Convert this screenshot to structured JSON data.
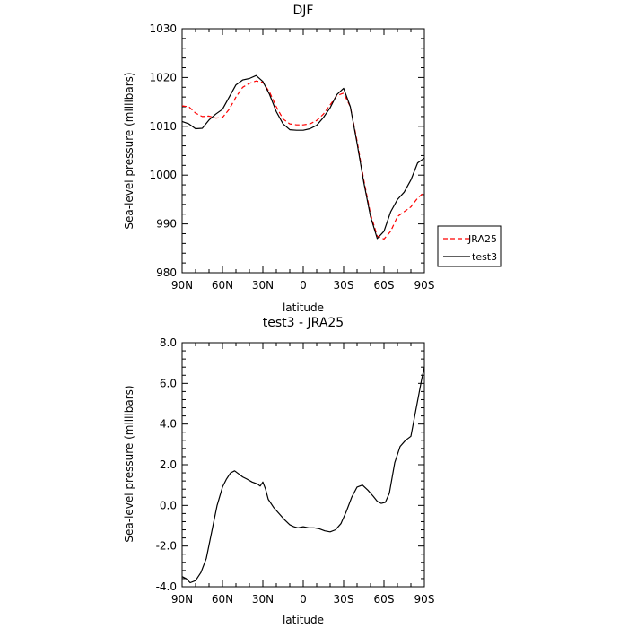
{
  "chart_data": [
    {
      "type": "line",
      "title": "DJF",
      "xlabel": "latitude",
      "ylabel": "Sea-level pressure (millibars)",
      "xlim": [
        90,
        -90
      ],
      "ylim": [
        980,
        1030
      ],
      "x_ticks": [
        90,
        60,
        30,
        0,
        -30,
        -60,
        -90
      ],
      "x_tick_labels": [
        "90N",
        "60N",
        "30N",
        "0",
        "30S",
        "60S",
        "90S"
      ],
      "y_ticks": [
        980,
        990,
        1000,
        1010,
        1020,
        1030
      ],
      "y_tick_labels": [
        "980",
        "990",
        "1000",
        "1010",
        "1020",
        "1030"
      ],
      "legend_position": "right",
      "series": [
        {
          "name": "JRA25",
          "color": "#ff0000",
          "dash": "dashed",
          "x": [
            90,
            85,
            80,
            75,
            70,
            65,
            60,
            55,
            50,
            45,
            40,
            35,
            30,
            25,
            20,
            15,
            10,
            5,
            0,
            -5,
            -10,
            -15,
            -20,
            -25,
            -30,
            -35,
            -40,
            -45,
            -50,
            -55,
            -60,
            -65,
            -70,
            -75,
            -80,
            -85,
            -90
          ],
          "values": [
            1014.2,
            1014.0,
            1012.7,
            1012.0,
            1012.1,
            1011.7,
            1011.8,
            1013.5,
            1016.0,
            1018.0,
            1018.8,
            1019.3,
            1019.0,
            1017.0,
            1014.0,
            1011.5,
            1010.5,
            1010.3,
            1010.3,
            1010.5,
            1011.2,
            1012.5,
            1014.4,
            1016.3,
            1016.8,
            1014.0,
            1007.0,
            999.0,
            992.0,
            987.5,
            986.9,
            988.5,
            991.5,
            992.5,
            993.5,
            995.3,
            996.5
          ]
        },
        {
          "name": "test3",
          "color": "#000000",
          "dash": "solid",
          "x": [
            90,
            85,
            80,
            75,
            70,
            65,
            60,
            55,
            50,
            45,
            40,
            35,
            30,
            25,
            20,
            15,
            10,
            5,
            0,
            -5,
            -10,
            -15,
            -20,
            -25,
            -30,
            -35,
            -40,
            -45,
            -50,
            -55,
            -60,
            -65,
            -70,
            -75,
            -80,
            -85,
            -90
          ],
          "values": [
            1011.0,
            1010.5,
            1009.5,
            1009.6,
            1011.3,
            1012.5,
            1013.5,
            1016.0,
            1018.5,
            1019.5,
            1019.8,
            1020.4,
            1019.2,
            1016.5,
            1013.0,
            1010.5,
            1009.3,
            1009.2,
            1009.2,
            1009.5,
            1010.2,
            1011.8,
            1013.8,
            1016.5,
            1017.8,
            1014.0,
            1006.5,
            998.5,
            991.5,
            987.0,
            988.5,
            992.5,
            995.0,
            996.5,
            999.0,
            1002.5,
            1003.5
          ]
        }
      ]
    },
    {
      "type": "line",
      "title": "test3 - JRA25",
      "xlabel": "latitude",
      "ylabel": "Sea-level pressure (millibars)",
      "xlim": [
        90,
        -90
      ],
      "ylim": [
        -4.0,
        8.0
      ],
      "x_ticks": [
        90,
        60,
        30,
        0,
        -30,
        -60,
        -90
      ],
      "x_tick_labels": [
        "90N",
        "60N",
        "30N",
        "0",
        "30S",
        "60S",
        "90S"
      ],
      "y_ticks": [
        -4.0,
        -2.0,
        0.0,
        2.0,
        4.0,
        6.0,
        8.0
      ],
      "y_tick_labels": [
        "-4.0",
        "-2.0",
        "0.0",
        "2.0",
        "4.0",
        "6.0",
        "8.0"
      ],
      "series": [
        {
          "name": "",
          "color": "#000000",
          "dash": "solid",
          "x": [
            90,
            87,
            84,
            80,
            76,
            72,
            68,
            64,
            60,
            57,
            54,
            51,
            48,
            45,
            42,
            38,
            34,
            32,
            30,
            28,
            26,
            22,
            18,
            14,
            10,
            7,
            4,
            0,
            -4,
            -8,
            -12,
            -16,
            -20,
            -24,
            -28,
            -32,
            -36,
            -40,
            -44,
            -48,
            -52,
            -55,
            -58,
            -61,
            -64,
            -68,
            -72,
            -76,
            -80,
            -84,
            -88,
            -90
          ],
          "values": [
            -3.5,
            -3.6,
            -3.8,
            -3.7,
            -3.3,
            -2.6,
            -1.3,
            0.0,
            0.9,
            1.3,
            1.6,
            1.7,
            1.55,
            1.4,
            1.3,
            1.15,
            1.05,
            0.95,
            1.15,
            0.8,
            0.3,
            -0.1,
            -0.4,
            -0.7,
            -0.95,
            -1.05,
            -1.1,
            -1.05,
            -1.1,
            -1.1,
            -1.15,
            -1.25,
            -1.3,
            -1.2,
            -0.9,
            -0.3,
            0.4,
            0.9,
            1.0,
            0.75,
            0.45,
            0.2,
            0.1,
            0.15,
            0.6,
            2.1,
            2.9,
            3.2,
            3.4,
            4.8,
            6.2,
            6.8
          ]
        }
      ]
    }
  ]
}
